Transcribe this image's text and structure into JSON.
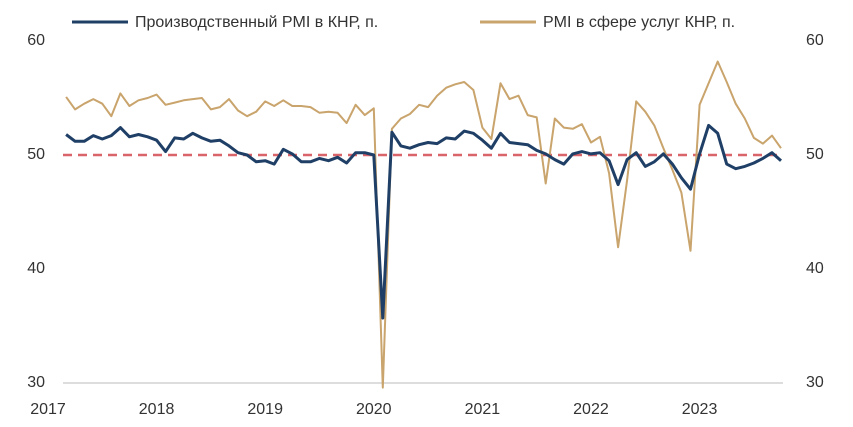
{
  "chart_data": {
    "type": "line",
    "x": [
      2017.167,
      2017.25,
      2017.333,
      2017.417,
      2017.5,
      2017.583,
      2017.667,
      2017.75,
      2017.833,
      2017.917,
      2018,
      2018.083,
      2018.167,
      2018.25,
      2018.333,
      2018.417,
      2018.5,
      2018.583,
      2018.667,
      2018.75,
      2018.833,
      2018.917,
      2019,
      2019.083,
      2019.167,
      2019.25,
      2019.333,
      2019.417,
      2019.5,
      2019.583,
      2019.667,
      2019.75,
      2019.833,
      2019.917,
      2020,
      2020.083,
      2020.167,
      2020.25,
      2020.333,
      2020.417,
      2020.5,
      2020.583,
      2020.667,
      2020.75,
      2020.833,
      2020.917,
      2021,
      2021.083,
      2021.167,
      2021.25,
      2021.333,
      2021.417,
      2021.5,
      2021.583,
      2021.667,
      2021.75,
      2021.833,
      2021.917,
      2022,
      2022.083,
      2022.167,
      2022.25,
      2022.333,
      2022.417,
      2022.5,
      2022.583,
      2022.667,
      2022.75,
      2022.833,
      2022.917,
      2023,
      2023.083,
      2023.167,
      2023.25,
      2023.333,
      2023.417,
      2023.5,
      2023.583,
      2023.667,
      2023.75
    ],
    "series": [
      {
        "name": "Производственный PMI в КНР, п.",
        "color": "#1f3f66",
        "values": [
          51.8,
          51.2,
          51.2,
          51.7,
          51.4,
          51.7,
          52.4,
          51.6,
          51.8,
          51.6,
          51.3,
          50.3,
          51.5,
          51.4,
          51.9,
          51.5,
          51.2,
          51.3,
          50.8,
          50.2,
          50.0,
          49.4,
          49.5,
          49.2,
          50.5,
          50.1,
          49.4,
          49.4,
          49.7,
          49.5,
          49.8,
          49.3,
          50.2,
          50.2,
          50.0,
          35.7,
          52.0,
          50.8,
          50.6,
          50.9,
          51.1,
          51.0,
          51.5,
          51.4,
          52.1,
          51.9,
          51.3,
          50.6,
          51.9,
          51.1,
          51.0,
          50.9,
          50.4,
          50.1,
          49.6,
          49.2,
          50.1,
          50.3,
          50.1,
          50.2,
          49.5,
          47.4,
          49.6,
          50.2,
          49.0,
          49.4,
          50.1,
          49.2,
          48.0,
          47.0,
          50.1,
          52.6,
          51.9,
          49.2,
          48.8,
          49.0,
          49.3,
          49.7,
          50.2,
          49.5
        ]
      },
      {
        "name": "PMI в сфере услуг КНР, п.",
        "color": "#c9a46c",
        "values": [
          55.1,
          54.0,
          54.5,
          54.9,
          54.5,
          53.4,
          55.4,
          54.3,
          54.8,
          55.0,
          55.3,
          54.4,
          54.6,
          54.8,
          54.9,
          55.0,
          54.0,
          54.2,
          54.9,
          53.9,
          53.4,
          53.8,
          54.7,
          54.3,
          54.8,
          54.3,
          54.3,
          54.2,
          53.7,
          53.8,
          53.7,
          52.8,
          54.4,
          53.5,
          54.1,
          29.6,
          52.3,
          53.2,
          53.6,
          54.4,
          54.2,
          55.2,
          55.9,
          56.2,
          56.4,
          55.7,
          52.4,
          51.4,
          56.3,
          54.9,
          55.2,
          53.5,
          53.3,
          47.5,
          53.2,
          52.4,
          52.3,
          52.7,
          51.1,
          51.6,
          48.4,
          41.9,
          47.8,
          54.7,
          53.8,
          52.6,
          50.6,
          48.7,
          46.7,
          41.6,
          54.4,
          56.3,
          58.2,
          56.4,
          54.5,
          53.2,
          51.5,
          51.0,
          51.7,
          50.6
        ]
      }
    ],
    "xlim": [
      2017,
      2023.75
    ],
    "xticks": [
      2017,
      2018,
      2019,
      2020,
      2021,
      2022,
      2023
    ],
    "ylim": [
      30,
      60
    ],
    "yticks": [
      30,
      40,
      50,
      60
    ],
    "y2lim": [
      30,
      60
    ],
    "y2ticks": [
      30,
      40,
      50,
      60
    ],
    "reference_line": {
      "value": 50,
      "color": "#d9646a"
    },
    "legend": "top"
  }
}
